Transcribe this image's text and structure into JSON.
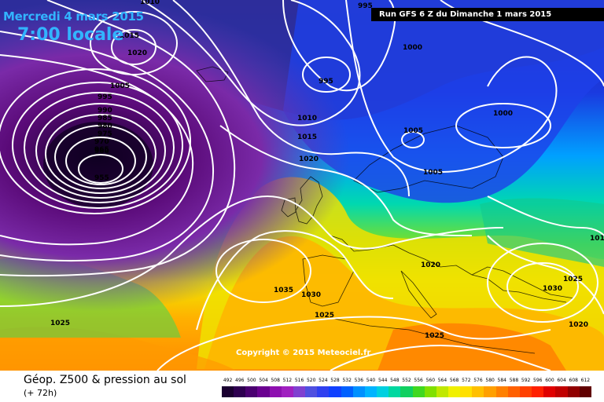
{
  "header": {
    "date": "Mercredi 4 mars 2015",
    "time": "7:00 locale",
    "run": "Run GFS 6 Z du Dimanche 1 mars 2015"
  },
  "copyright": "Copyright © 2015 Meteociel.fr",
  "legend": {
    "title": "Géop. Z500 & pression au sol",
    "subtitle": "(+ 72h)",
    "scale_values": [
      "492",
      "496",
      "500",
      "504",
      "508",
      "512",
      "516",
      "520",
      "524",
      "528",
      "532",
      "536",
      "540",
      "544",
      "548",
      "552",
      "556",
      "560",
      "564",
      "568",
      "572",
      "576",
      "580",
      "584",
      "588",
      "592",
      "596",
      "600",
      "604",
      "608",
      "612"
    ],
    "scale_colors": [
      "#1a0030",
      "#2e0050",
      "#4a0070",
      "#6a0090",
      "#8e10b0",
      "#a020c0",
      "#8040d0",
      "#5050e0",
      "#3040f0",
      "#1040ff",
      "#0060ff",
      "#0090ff",
      "#00b4ff",
      "#00d0e0",
      "#00d8a0",
      "#10d060",
      "#40d820",
      "#80e000",
      "#c0e800",
      "#f0f000",
      "#ffe000",
      "#ffc000",
      "#ffa000",
      "#ff8000",
      "#ff6000",
      "#ff4000",
      "#ff2000",
      "#e00000",
      "#c00000",
      "#900000",
      "#600000"
    ]
  },
  "isobar_labels": [
    {
      "id": "l1010a",
      "text": "1010"
    },
    {
      "id": "l995a",
      "text": "995"
    },
    {
      "id": "l1015a",
      "text": "1015"
    },
    {
      "id": "l1020a",
      "text": "1020"
    },
    {
      "id": "l1005a",
      "text": "1005"
    },
    {
      "id": "l995b",
      "text": "995"
    },
    {
      "id": "l990",
      "text": "990"
    },
    {
      "id": "l985",
      "text": "985"
    },
    {
      "id": "l980",
      "text": "980"
    },
    {
      "id": "l975",
      "text": "975"
    },
    {
      "id": "l970",
      "text": "970"
    },
    {
      "id": "l965",
      "text": "965"
    },
    {
      "id": "l960",
      "text": "960"
    },
    {
      "id": "l955",
      "text": "955"
    },
    {
      "id": "l995c",
      "text": "995"
    },
    {
      "id": "l1000a",
      "text": "1000"
    },
    {
      "id": "l1010b",
      "text": "1010"
    },
    {
      "id": "l1015b",
      "text": "1015"
    },
    {
      "id": "l1020b",
      "text": "1020"
    },
    {
      "id": "l1005b",
      "text": "1005"
    },
    {
      "id": "l1000b",
      "text": "1000"
    },
    {
      "id": "l1005c",
      "text": "1005"
    },
    {
      "id": "l1020c",
      "text": "1020"
    },
    {
      "id": "l1035",
      "text": "1035"
    },
    {
      "id": "l1030a",
      "text": "1030"
    },
    {
      "id": "l1025a",
      "text": "1025"
    },
    {
      "id": "l1025b",
      "text": "1025"
    },
    {
      "id": "l1025c",
      "text": "1025"
    },
    {
      "id": "l1025d",
      "text": "1025"
    },
    {
      "id": "l1030b",
      "text": "1030"
    },
    {
      "id": "l1020d",
      "text": "1020"
    },
    {
      "id": "l101",
      "text": "101"
    }
  ]
}
